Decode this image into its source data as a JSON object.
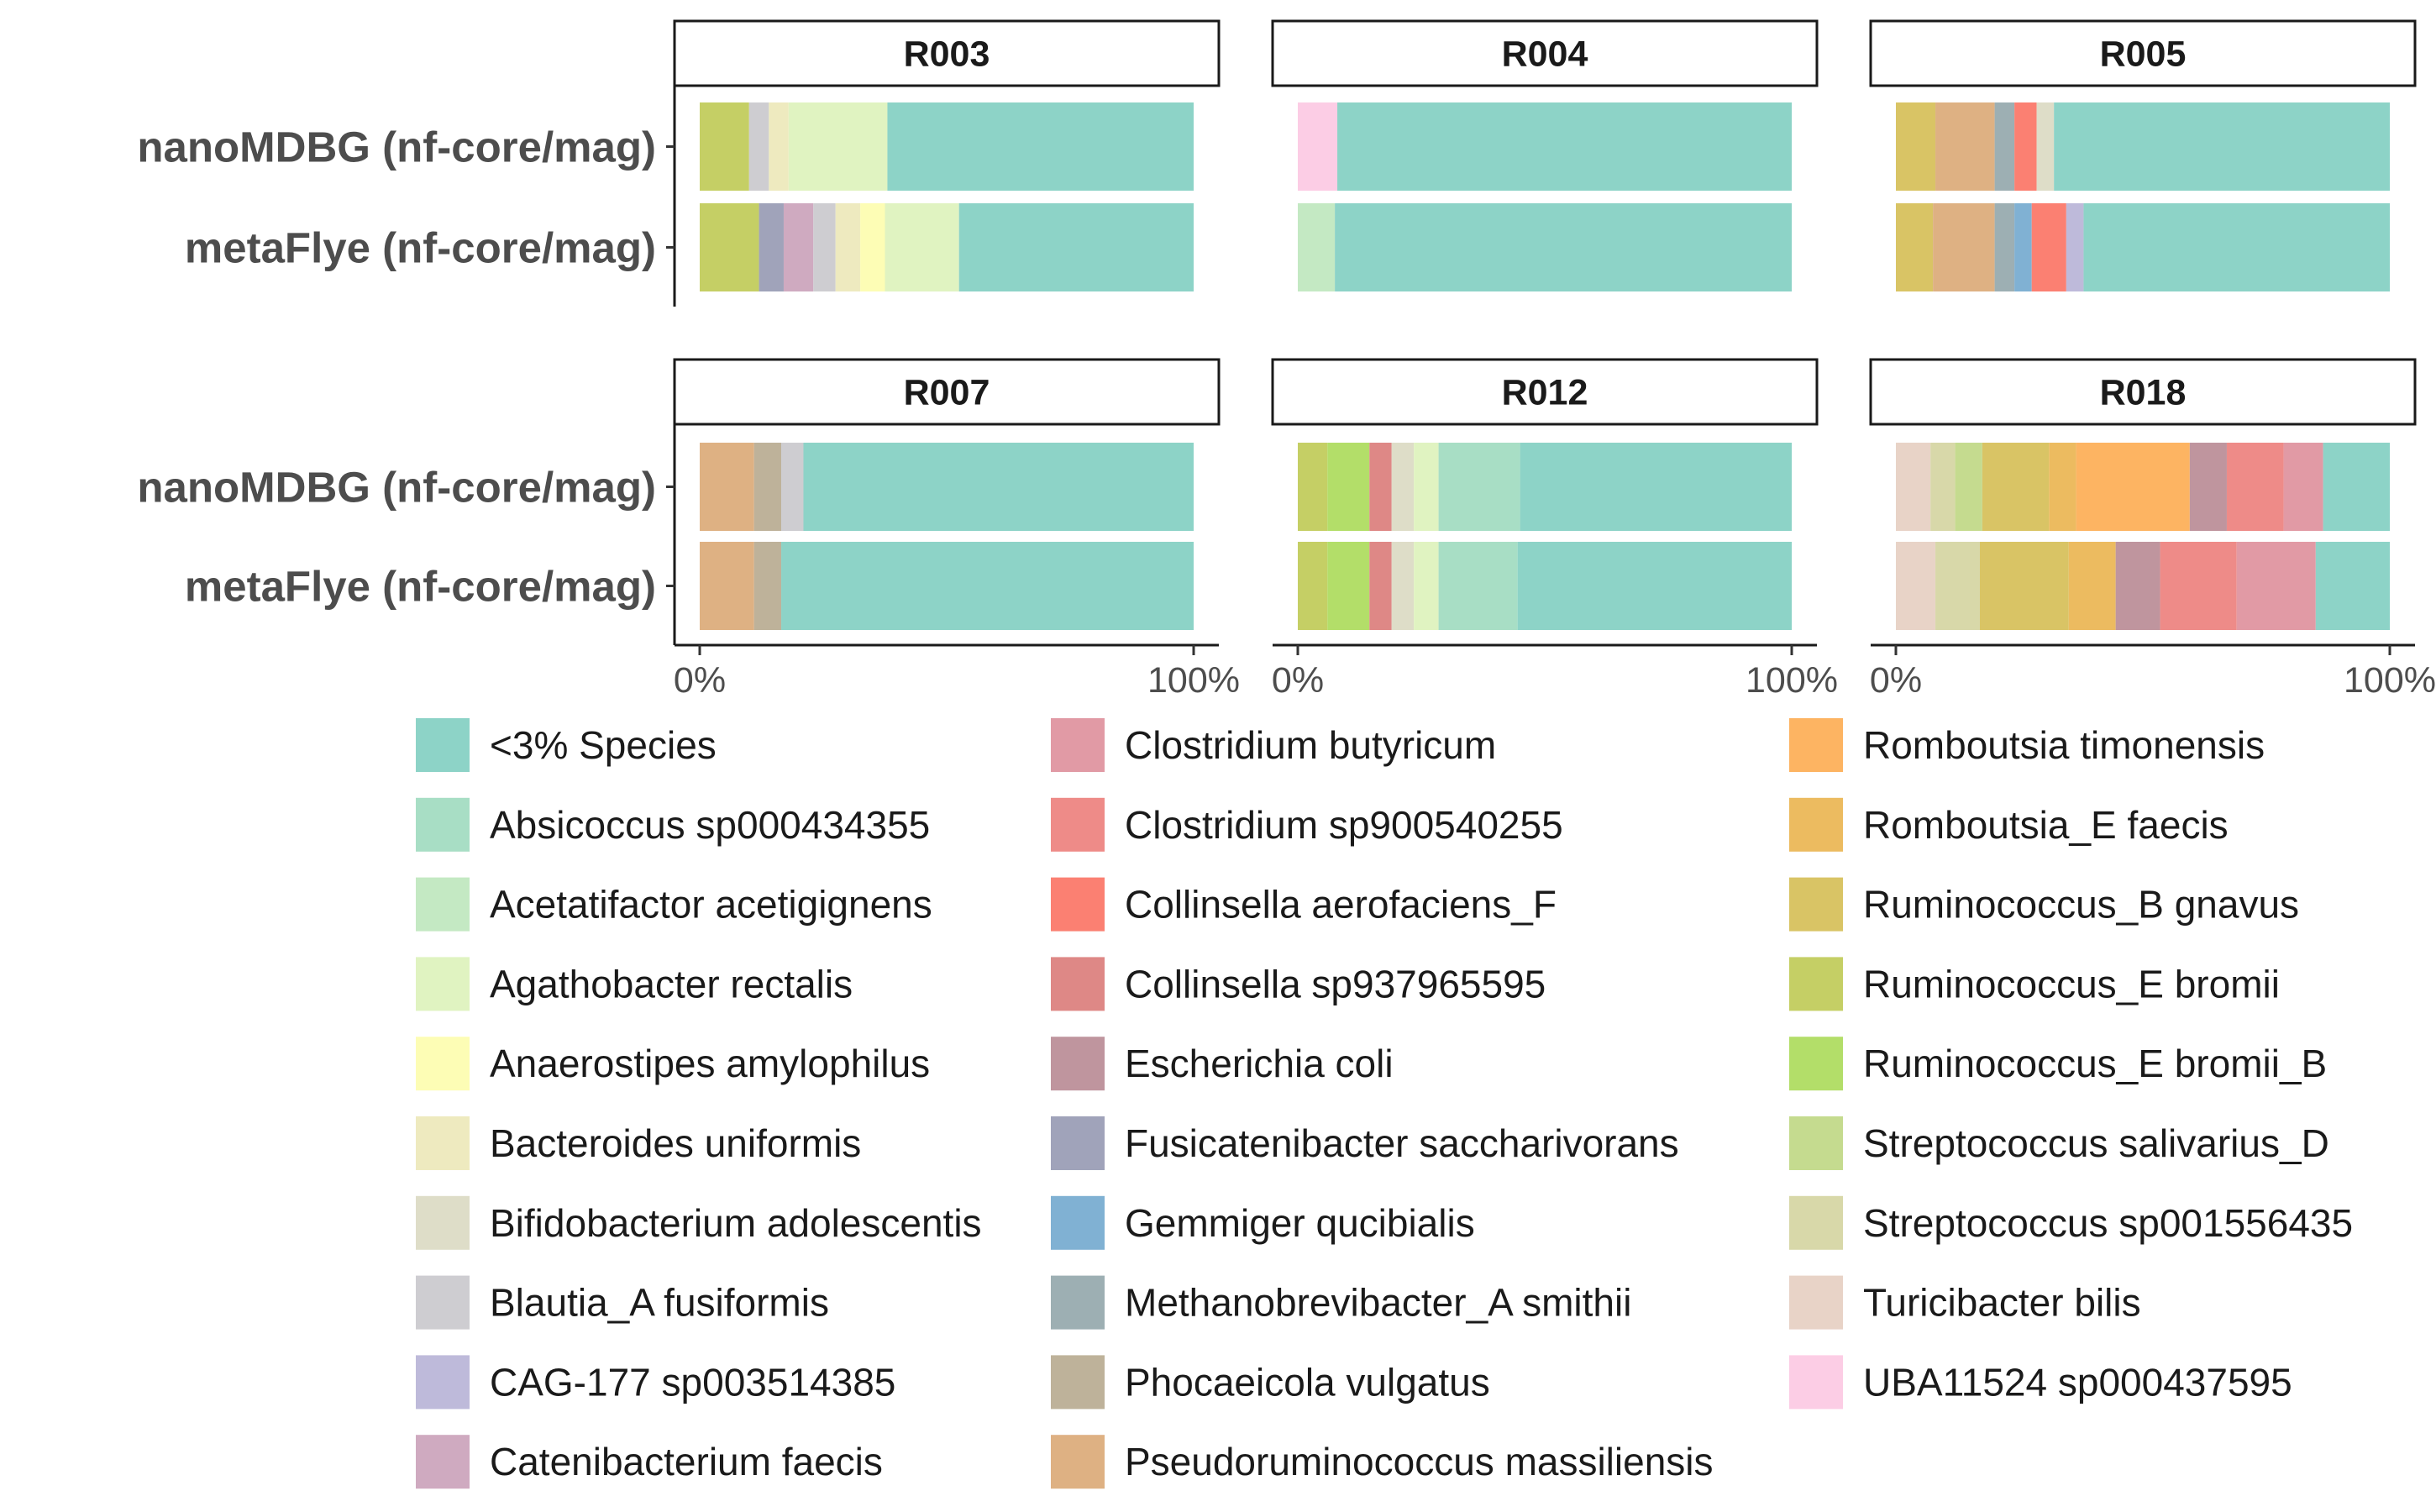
{
  "chart_data": {
    "type": "bar",
    "orientation": "horizontal",
    "stacked": true,
    "normalized": true,
    "rows": [
      "nanoMDBG (nf-core/mag)",
      "metaFlye (nf-core/mag)"
    ],
    "x_ticks": [
      "0%",
      "100%"
    ],
    "xlim": [
      0,
      100
    ],
    "legend_position": "bottom",
    "species": [
      {
        "name": "<3% Species",
        "color": "#8DD3C7"
      },
      {
        "name": "Absicoccus sp000434355",
        "color": "#A8DEC5"
      },
      {
        "name": "Acetatifactor acetigignens",
        "color": "#C4E9C3"
      },
      {
        "name": "Agathobacter rectalis",
        "color": "#E0F3C1"
      },
      {
        "name": "Anaerostipes amylophilus",
        "color": "#FDFDB5"
      },
      {
        "name": "Bacteroides uniformis",
        "color": "#EEEABF"
      },
      {
        "name": "Bifidobacterium adolescentis",
        "color": "#DEDDC8"
      },
      {
        "name": "Blautia_A fusiformis",
        "color": "#CECDD1"
      },
      {
        "name": "CAG-177 sp003514385",
        "color": "#BEBADA"
      },
      {
        "name": "Catenibacterium faecis",
        "color": "#CFAAC0"
      },
      {
        "name": "Clostridium butyricum",
        "color": "#E19AA5"
      },
      {
        "name": "Clostridium sp900540255",
        "color": "#EE8B88"
      },
      {
        "name": "Collinsella aerofaciens_F",
        "color": "#FB8072"
      },
      {
        "name": "Collinsella sp937965595",
        "color": "#DE8886"
      },
      {
        "name": "Escherichia coli",
        "color": "#BF959E"
      },
      {
        "name": "Fusicatenibacter saccharivorans",
        "color": "#A0A3BA"
      },
      {
        "name": "Gemmiger qucibialis",
        "color": "#80B1D3"
      },
      {
        "name": "Methanobrevibacter_A smithii",
        "color": "#9DAFB3"
      },
      {
        "name": "Phocaeicola vulgatus",
        "color": "#BEB29A"
      },
      {
        "name": "Pseudoruminococcus massiliensis",
        "color": "#DEB183"
      },
      {
        "name": "Romboutsia timonensis",
        "color": "#FDB462"
      },
      {
        "name": "Romboutsia_E faecis",
        "color": "#ECBB60"
      },
      {
        "name": "Ruminococcus_B gnavus",
        "color": "#D9C465"
      },
      {
        "name": "Ruminococcus_E bromii",
        "color": "#C5CF65"
      },
      {
        "name": "Ruminococcus_E bromii_B",
        "color": "#B3DE69"
      },
      {
        "name": "Streptococcus salivarius_D",
        "color": "#C5DB8F"
      },
      {
        "name": "Streptococcus sp001556435",
        "color": "#D8D8A9"
      },
      {
        "name": "Turicibacter bilis",
        "color": "#E8D3C7"
      },
      {
        "name": "UBA11524 sp000437595",
        "color": "#FCCDE5"
      }
    ],
    "panels": [
      {
        "label": "R003",
        "bars": [
          [
            [
              "Ruminococcus_E bromii",
              10
            ],
            [
              "Blautia_A fusiformis",
              4
            ],
            [
              "Bacteroides uniformis",
              4
            ],
            [
              "Agathobacter rectalis",
              20
            ],
            [
              "<3% Species",
              62
            ]
          ],
          [
            [
              "Ruminococcus_E bromii",
              12
            ],
            [
              "Fusicatenibacter saccharivorans",
              5
            ],
            [
              "Catenibacterium faecis",
              6
            ],
            [
              "Blautia_A fusiformis",
              4.5
            ],
            [
              "Bacteroides uniformis",
              5
            ],
            [
              "Anaerostipes amylophilus",
              5
            ],
            [
              "Agathobacter rectalis",
              15
            ],
            [
              "<3% Species",
              47.5
            ]
          ]
        ]
      },
      {
        "label": "R004",
        "bars": [
          [
            [
              "UBA11524 sp000437595",
              8
            ],
            [
              "<3% Species",
              92
            ]
          ],
          [
            [
              "Acetatifactor acetigignens",
              7.5
            ],
            [
              "<3% Species",
              92.5
            ]
          ]
        ]
      },
      {
        "label": "R005",
        "bars": [
          [
            [
              "Ruminococcus_B gnavus",
              8
            ],
            [
              "Pseudoruminococcus massiliensis",
              12
            ],
            [
              "Methanobrevibacter_A smithii",
              4
            ],
            [
              "Collinsella aerofaciens_F",
              4.5
            ],
            [
              "Bifidobacterium adolescentis",
              3.5
            ],
            [
              "<3% Species",
              68
            ]
          ],
          [
            [
              "Ruminococcus_B gnavus",
              7.5
            ],
            [
              "Pseudoruminococcus massiliensis",
              12.5
            ],
            [
              "Methanobrevibacter_A smithii",
              4
            ],
            [
              "Gemmiger qucibialis",
              3.5
            ],
            [
              "Collinsella aerofaciens_F",
              7
            ],
            [
              "CAG-177 sp003514385",
              3.5
            ],
            [
              "<3% Species",
              62
            ]
          ]
        ]
      },
      {
        "label": "R007",
        "bars": [
          [
            [
              "Pseudoruminococcus massiliensis",
              11
            ],
            [
              "Phocaeicola vulgatus",
              5.5
            ],
            [
              "Blautia_A fusiformis",
              4.5
            ],
            [
              "<3% Species",
              79
            ]
          ],
          [
            [
              "Pseudoruminococcus massiliensis",
              11
            ],
            [
              "Phocaeicola vulgatus",
              5.5
            ],
            [
              "<3% Species",
              83.5
            ]
          ]
        ]
      },
      {
        "label": "R012",
        "bars": [
          [
            [
              "Ruminococcus_E bromii",
              6
            ],
            [
              "Ruminococcus_E bromii_B",
              8.5
            ],
            [
              "Collinsella sp937965595",
              4.5
            ],
            [
              "Bifidobacterium adolescentis",
              4.5
            ],
            [
              "Agathobacter rectalis",
              5
            ],
            [
              "Absicoccus sp000434355",
              16.5
            ],
            [
              "<3% Species",
              55
            ]
          ],
          [
            [
              "Ruminococcus_E bromii",
              6
            ],
            [
              "Ruminococcus_E bromii_B",
              8.5
            ],
            [
              "Collinsella sp937965595",
              4.5
            ],
            [
              "Bifidobacterium adolescentis",
              4.5
            ],
            [
              "Agathobacter rectalis",
              5
            ],
            [
              "Absicoccus sp000434355",
              16
            ],
            [
              "<3% Species",
              55.5
            ]
          ]
        ]
      },
      {
        "label": "R018",
        "bars": [
          [
            [
              "Turicibacter bilis",
              7
            ],
            [
              "Streptococcus sp001556435",
              5
            ],
            [
              "Streptococcus salivarius_D",
              5.5
            ],
            [
              "Ruminococcus_B gnavus",
              13.5
            ],
            [
              "Romboutsia_E faecis",
              5.5
            ],
            [
              "Romboutsia timonensis",
              23
            ],
            [
              "Escherichia coli",
              7.5
            ],
            [
              "Clostridium sp900540255",
              11.5
            ],
            [
              "Clostridium butyricum",
              8
            ],
            [
              "<3% Species",
              13.5
            ]
          ],
          [
            [
              "Turicibacter bilis",
              8
            ],
            [
              "Streptococcus sp001556435",
              9
            ],
            [
              "Ruminococcus_B gnavus",
              18
            ],
            [
              "Romboutsia_E faecis",
              9.5
            ],
            [
              "Escherichia coli",
              9
            ],
            [
              "Clostridium sp900540255",
              15.5
            ],
            [
              "Clostridium butyricum",
              16
            ],
            [
              "<3% Species",
              15
            ]
          ]
        ]
      }
    ]
  }
}
